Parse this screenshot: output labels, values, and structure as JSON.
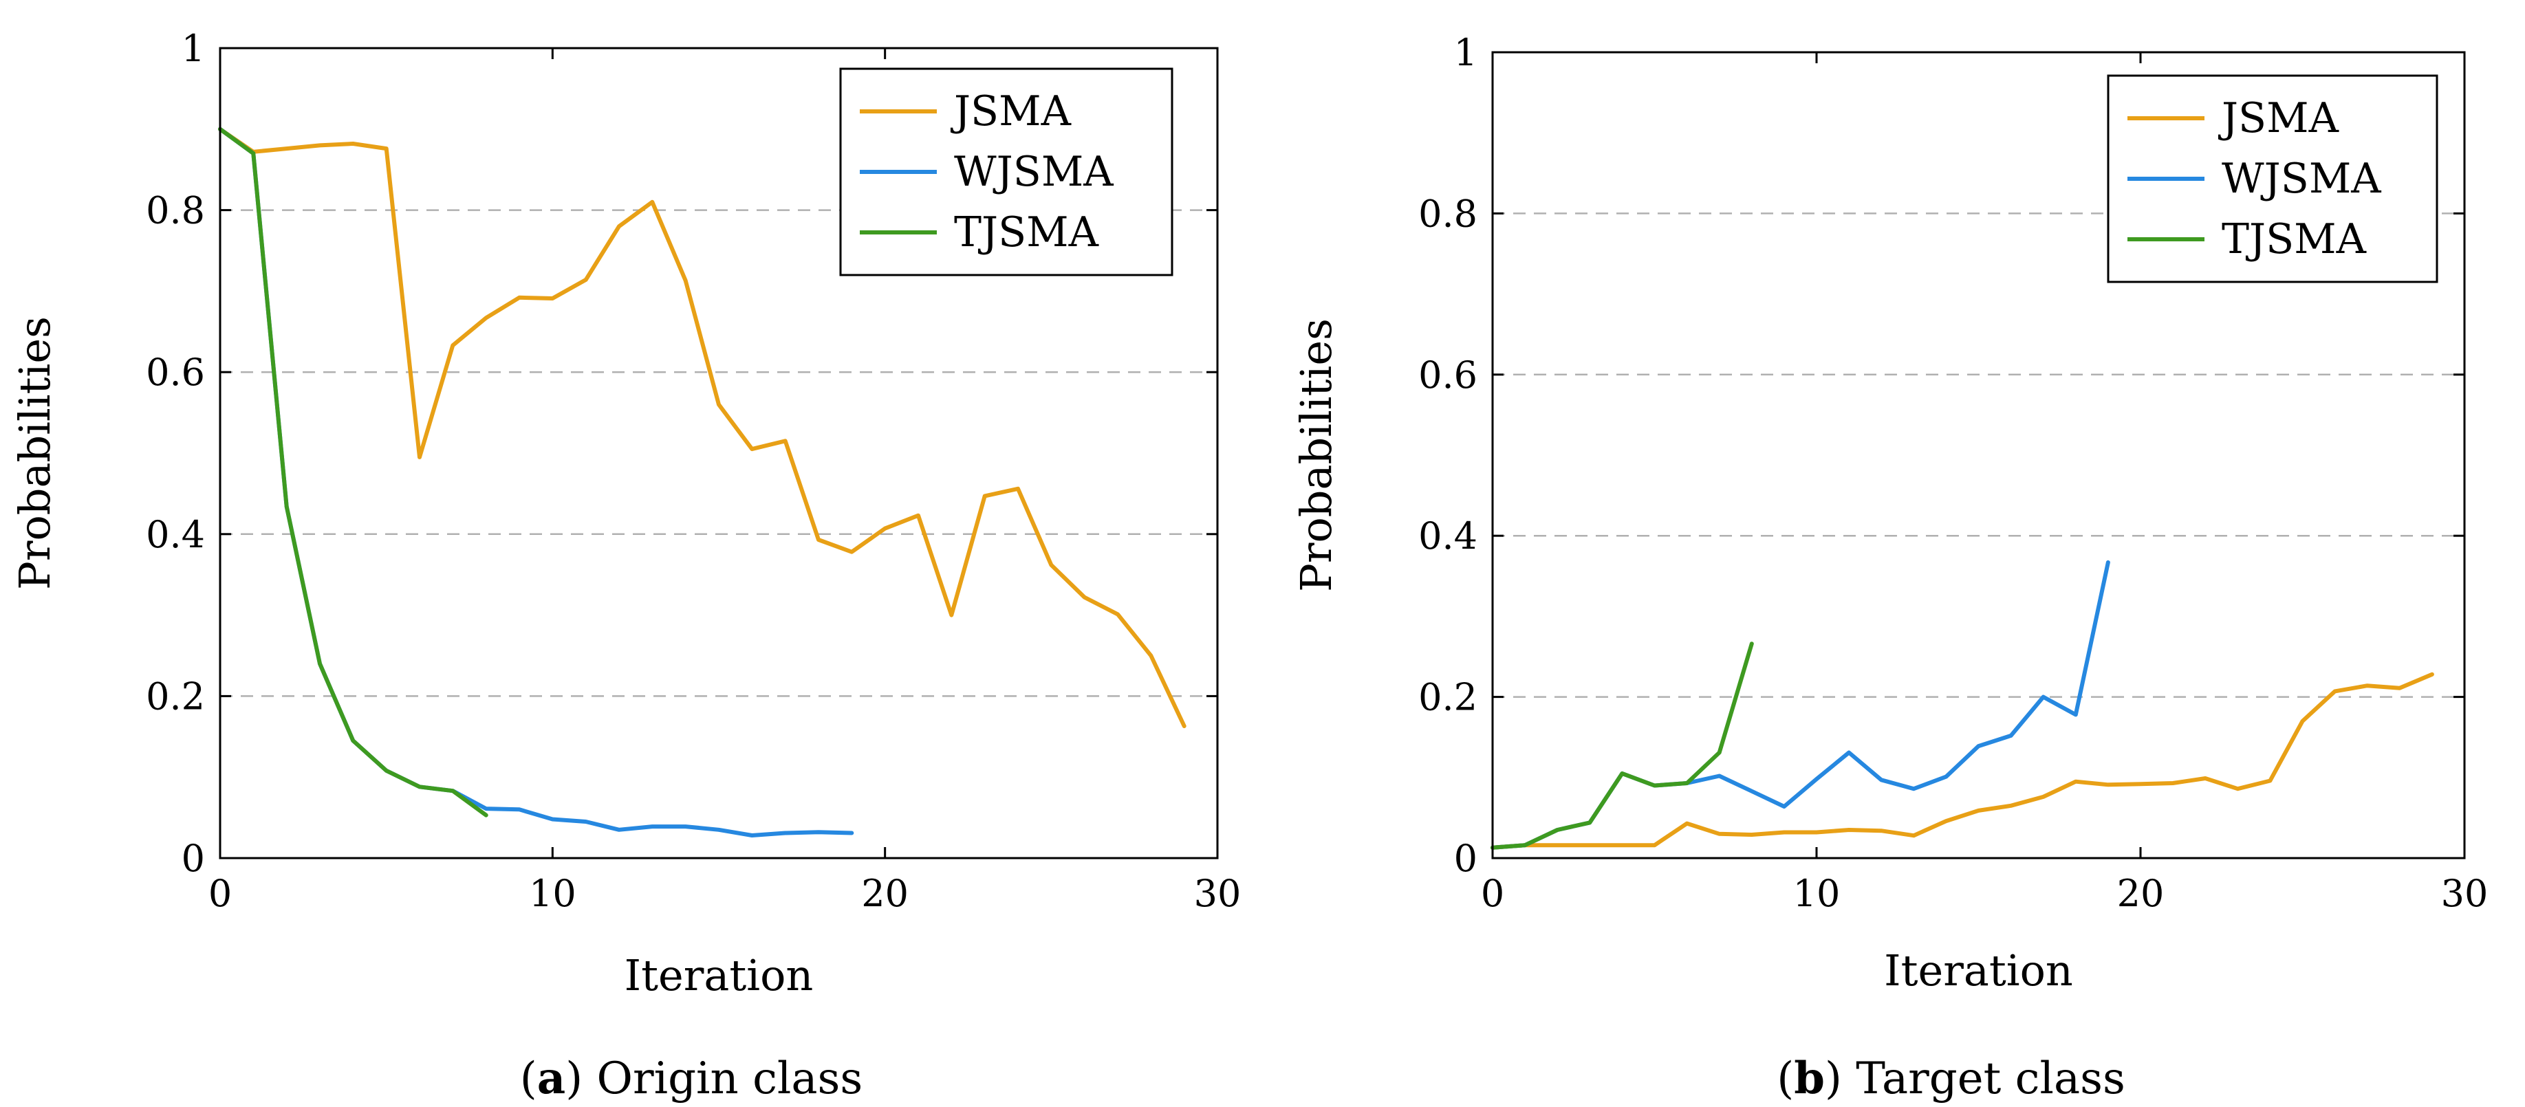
{
  "colors": {
    "JSMA": "#e8a016",
    "WJSMA": "#2688e0",
    "TJSMA": "#3e9a20",
    "grid": "#b0b0b0"
  },
  "chart_data": [
    {
      "type": "line",
      "caption_prefix": "a",
      "caption_text": "Origin class",
      "xlabel": "Iteration",
      "ylabel": "Probabilities",
      "xlim": [
        0,
        30
      ],
      "ylim": [
        0,
        1
      ],
      "xticks": [
        0,
        10,
        20,
        30
      ],
      "xtick_labels": [
        "0",
        "10",
        "20",
        "30"
      ],
      "yticks": [
        0,
        0.2,
        0.4,
        0.6,
        0.8,
        1
      ],
      "ytick_labels": [
        "0",
        "0.2",
        "0.4",
        "0.6",
        "0.8",
        "1"
      ],
      "grid": "horizontal-dashed",
      "legend": "top-right",
      "series": [
        {
          "name": "JSMA",
          "x": [
            0,
            1,
            2,
            3,
            4,
            5,
            6,
            7,
            8,
            9,
            10,
            11,
            12,
            13,
            14,
            15,
            16,
            17,
            18,
            19,
            20,
            21,
            22,
            23,
            24,
            25,
            26,
            27,
            28,
            29
          ],
          "y": [
            0.9,
            0.872,
            0.876,
            0.88,
            0.882,
            0.876,
            0.495,
            0.633,
            0.667,
            0.692,
            0.691,
            0.714,
            0.78,
            0.81,
            0.713,
            0.56,
            0.505,
            0.515,
            0.393,
            0.378,
            0.407,
            0.423,
            0.3,
            0.447,
            0.456,
            0.362,
            0.322,
            0.301,
            0.25,
            0.163
          ]
        },
        {
          "name": "WJSMA",
          "x": [
            0,
            1,
            2,
            3,
            4,
            5,
            6,
            7,
            8,
            9,
            10,
            11,
            12,
            13,
            14,
            15,
            16,
            17,
            18,
            19
          ],
          "y": [
            0.9,
            0.87,
            0.434,
            0.24,
            0.145,
            0.108,
            0.088,
            0.083,
            0.061,
            0.06,
            0.048,
            0.045,
            0.035,
            0.039,
            0.039,
            0.035,
            0.028,
            0.031,
            0.032,
            0.031
          ]
        },
        {
          "name": "TJSMA",
          "x": [
            0,
            1,
            2,
            3,
            4,
            5,
            6,
            7,
            8
          ],
          "y": [
            0.9,
            0.87,
            0.434,
            0.24,
            0.145,
            0.108,
            0.088,
            0.083,
            0.053
          ]
        }
      ]
    },
    {
      "type": "line",
      "caption_prefix": "b",
      "caption_text": "Target class",
      "xlabel": "Iteration",
      "ylabel": "Probabilities",
      "xlim": [
        0,
        30
      ],
      "ylim": [
        0,
        1
      ],
      "xticks": [
        0,
        10,
        20,
        30
      ],
      "xtick_labels": [
        "0",
        "10",
        "20",
        "30"
      ],
      "yticks": [
        0,
        0.2,
        0.4,
        0.6,
        0.8,
        1
      ],
      "ytick_labels": [
        "0",
        "0.2",
        "0.4",
        "0.6",
        "0.8",
        "1"
      ],
      "grid": "horizontal-dashed",
      "legend": "top-right",
      "series": [
        {
          "name": "JSMA",
          "x": [
            0,
            1,
            2,
            3,
            4,
            5,
            6,
            7,
            8,
            9,
            10,
            11,
            12,
            13,
            14,
            15,
            16,
            17,
            18,
            19,
            20,
            21,
            22,
            23,
            24,
            25,
            26,
            27,
            28,
            29
          ],
          "y": [
            0.013,
            0.016,
            0.016,
            0.016,
            0.016,
            0.016,
            0.043,
            0.03,
            0.029,
            0.032,
            0.032,
            0.035,
            0.034,
            0.028,
            0.046,
            0.059,
            0.065,
            0.076,
            0.095,
            0.091,
            0.092,
            0.093,
            0.099,
            0.086,
            0.096,
            0.17,
            0.207,
            0.214,
            0.211,
            0.228
          ]
        },
        {
          "name": "WJSMA",
          "x": [
            0,
            1,
            2,
            3,
            4,
            5,
            6,
            7,
            8,
            9,
            10,
            11,
            12,
            13,
            14,
            15,
            16,
            17,
            18,
            19
          ],
          "y": [
            0.013,
            0.016,
            0.035,
            0.044,
            0.105,
            0.09,
            0.093,
            0.102,
            0.083,
            0.064,
            0.098,
            0.131,
            0.097,
            0.086,
            0.101,
            0.139,
            0.152,
            0.2,
            0.178,
            0.367
          ]
        },
        {
          "name": "TJSMA",
          "x": [
            0,
            1,
            2,
            3,
            4,
            5,
            6,
            7,
            8
          ],
          "y": [
            0.013,
            0.016,
            0.035,
            0.044,
            0.105,
            0.09,
            0.093,
            0.131,
            0.266
          ]
        }
      ]
    }
  ]
}
